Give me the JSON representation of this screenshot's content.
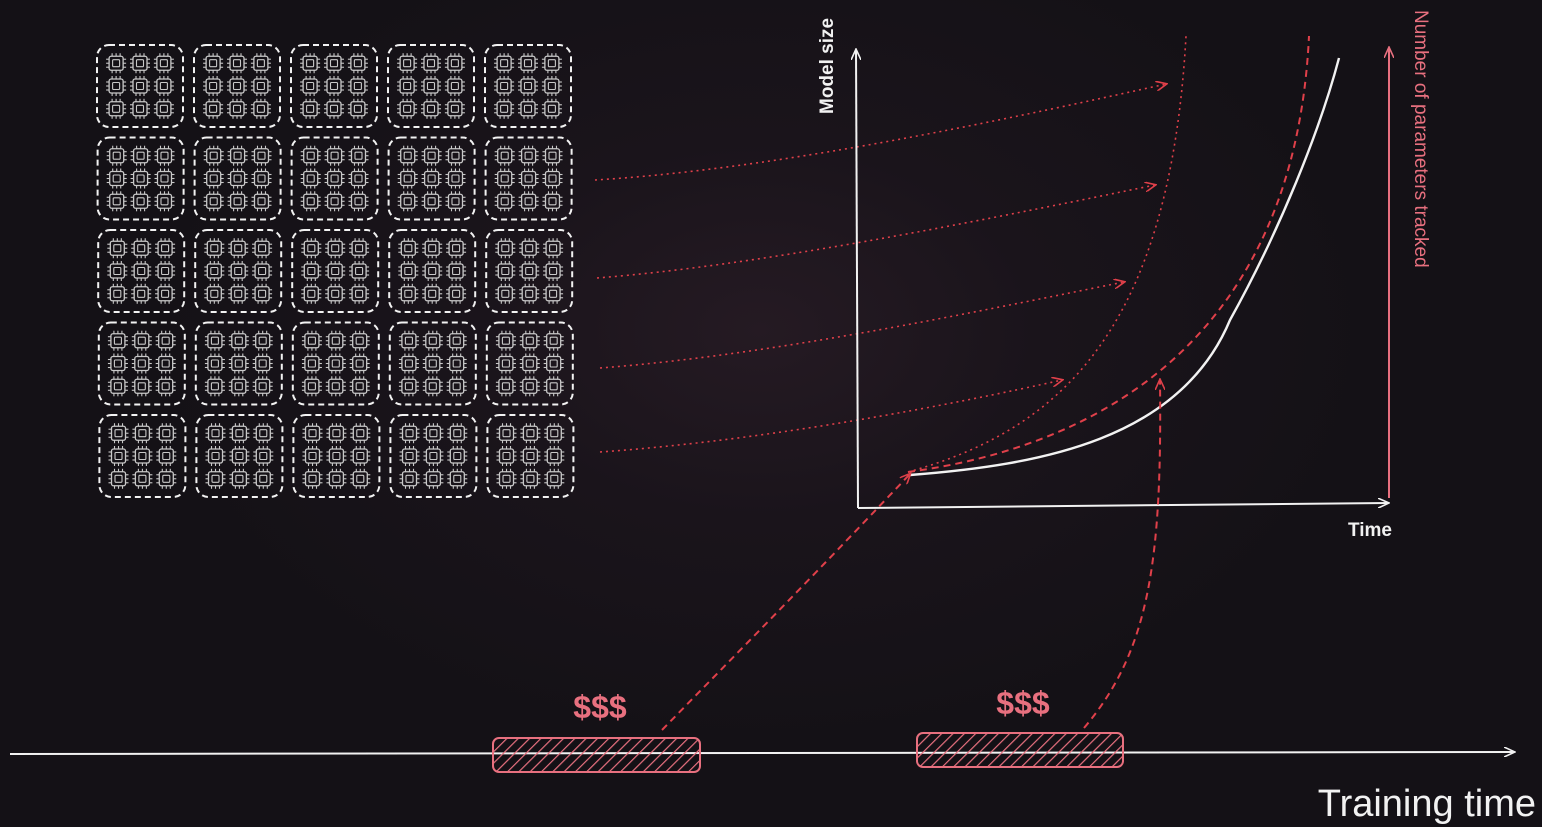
{
  "diagram": {
    "y_axis_label": "Model size",
    "x_axis_label": "Time",
    "right_axis_label": "Number of parameters tracked",
    "timeline_label": "Training time",
    "cost_labels": [
      "$$$",
      "$$$"
    ],
    "gpu_grid": {
      "rows": 5,
      "cols": 5,
      "chips_per_cell": 9
    },
    "colors": {
      "background": "#141116",
      "foreground": "#f2f2f2",
      "accent": "#e8707f",
      "dashed_red": "#e0404a"
    },
    "icons": [
      "gpu-chip-icon"
    ]
  }
}
